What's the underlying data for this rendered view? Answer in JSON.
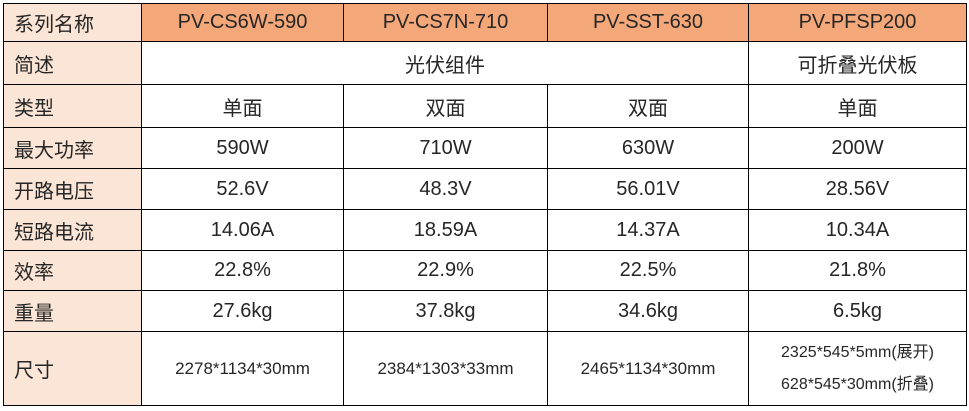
{
  "colors": {
    "header_bg": "#F4A87A",
    "label_column_bg": "#FBE5D6",
    "border": "#000000",
    "text": "#262626"
  },
  "header": {
    "label": "系列名称",
    "columns": [
      "PV-CS6W-590",
      "PV-CS7N-710",
      "PV-SST-630",
      "PV-PFSP200"
    ]
  },
  "rows": {
    "brief": {
      "label": "简述",
      "merged_value": "光伏组件",
      "last_value": "可折叠光伏板"
    },
    "type": {
      "label": "类型",
      "values": [
        "单面",
        "双面",
        "双面",
        "单面"
      ]
    },
    "max_power": {
      "label": "最大功率",
      "values": [
        "590W",
        "710W",
        "630W",
        "200W"
      ]
    },
    "open_circuit_voltage": {
      "label": "开路电压",
      "values": [
        "52.6V",
        "48.3V",
        "56.01V",
        "28.56V"
      ]
    },
    "short_circuit_current": {
      "label": "短路电流",
      "values": [
        "14.06A",
        "18.59A",
        "14.37A",
        "10.34A"
      ]
    },
    "efficiency": {
      "label": "效率",
      "values": [
        "22.8%",
        "22.9%",
        "22.5%",
        "21.8%"
      ]
    },
    "weight": {
      "label": "重量",
      "values": [
        "27.6kg",
        "37.8kg",
        "34.6kg",
        "6.5kg"
      ]
    },
    "dimensions": {
      "label": "尺寸",
      "values": [
        "2278*1134*30mm",
        "2384*1303*33mm",
        "2465*1134*30mm"
      ],
      "fold_lines": [
        "2325*545*5mm(展开)",
        "628*545*30mm(折叠)"
      ]
    }
  }
}
